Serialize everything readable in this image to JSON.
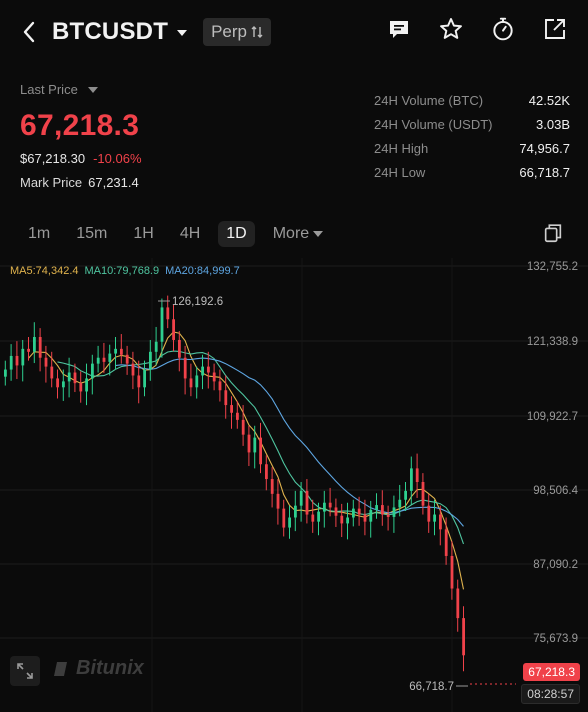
{
  "header": {
    "symbol": "BTCUSDT",
    "badge": "Perp",
    "icons": [
      "back-icon",
      "chat-icon",
      "star-icon",
      "timer-icon",
      "share-icon"
    ]
  },
  "price": {
    "last_price_label": "Last Price",
    "last_price": "67,218.3",
    "usd_price": "$67,218.30",
    "change_pct": "-10.06%",
    "mark_price_label": "Mark Price",
    "mark_price": "67,231.4"
  },
  "stats": [
    {
      "label": "24H Volume (BTC)",
      "value": "42.52K"
    },
    {
      "label": "24H Volume (USDT)",
      "value": "3.03B"
    },
    {
      "label": "24H High",
      "value": "74,956.7"
    },
    {
      "label": "24H Low",
      "value": "66,718.7"
    }
  ],
  "intervals": {
    "items": [
      "1m",
      "15m",
      "1H",
      "4H",
      "1D"
    ],
    "active": "1D",
    "more": "More"
  },
  "chart": {
    "ma5": "MA5:74,342.4",
    "ma10": "MA10:79,768.9",
    "ma20": "MA20:84,999.7",
    "y_ticks": [
      "132,755.2",
      "121,338.9",
      "109,922.7",
      "98,506.4",
      "87,090.2",
      "75,673.9"
    ],
    "high_label": "126,192.6",
    "low_label": "66,718.7",
    "current_price_tag": "67,218.3",
    "countdown": "08:28:57",
    "brand": "Bitunix"
  },
  "colors": {
    "up": "#2ecf8f",
    "down": "#f0424a",
    "ma5": "#e0b34d",
    "ma10": "#4fc5a0",
    "ma20": "#5ea6e2"
  },
  "chart_data": {
    "type": "candlestick",
    "ylim": [
      60000,
      133000
    ],
    "close": [
      115500,
      117800,
      116200,
      119000,
      118500,
      121000,
      117500,
      116000,
      114000,
      112500,
      113500,
      115000,
      113200,
      111800,
      114000,
      116500,
      117500,
      116800,
      118200,
      119000,
      118000,
      116500,
      114500,
      112500,
      115500,
      118500,
      120200,
      126000,
      124000,
      120500,
      117500,
      114000,
      112500,
      114500,
      116000,
      115000,
      113500,
      112000,
      109500,
      108200,
      107000,
      104500,
      101500,
      104000,
      99500,
      97000,
      94500,
      92000,
      88800,
      90500,
      92500,
      95000,
      91000,
      89800,
      91500,
      93000,
      92200,
      90800,
      89500,
      90500,
      92000,
      91000,
      89800,
      91800,
      92600,
      91000,
      90600,
      92200,
      93500,
      95000,
      98800,
      96500,
      92500,
      89800,
      91000,
      88500,
      84000,
      78500,
      73500,
      67218
    ]
  }
}
